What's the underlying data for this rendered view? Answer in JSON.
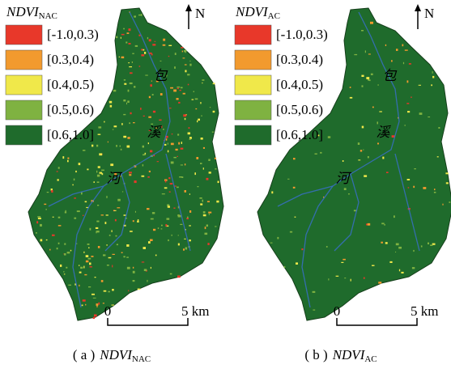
{
  "panels": [
    {
      "title": {
        "main": "NDVI",
        "sub": "NAC"
      },
      "legend": [
        {
          "label": "[-1.0,0.3)",
          "color": "#e8382a"
        },
        {
          "label": "[0.3,0.4)",
          "color": "#f29a2e"
        },
        {
          "label": "[0.4,0.5)",
          "color": "#f0e84a"
        },
        {
          "label": "[0.5,0.6)",
          "color": "#7fb241"
        },
        {
          "label": "[0.6,1.0]",
          "color": "#1f6b2c"
        }
      ],
      "north": "N",
      "scale": {
        "start": "0",
        "end": "5 km"
      },
      "river_labels": [
        "包",
        "溪",
        "河"
      ],
      "caption": {
        "prefix": "( a )",
        "main": "NDVI",
        "sub": "NAC"
      }
    },
    {
      "title": {
        "main": "NDVI",
        "sub": "AC"
      },
      "legend": [
        {
          "label": "[-1.0,0.3)",
          "color": "#e8382a"
        },
        {
          "label": "[0.3,0.4)",
          "color": "#f29a2e"
        },
        {
          "label": "[0.4,0.5)",
          "color": "#f0e84a"
        },
        {
          "label": "[0.5,0.6)",
          "color": "#7fb241"
        },
        {
          "label": "[0.6,1.0]",
          "color": "#1f6b2c"
        }
      ],
      "north": "N",
      "scale": {
        "start": "0",
        "end": "5 km"
      },
      "river_labels": [
        "包",
        "溪",
        "河"
      ],
      "caption": {
        "prefix": "( b )",
        "main": "NDVI",
        "sub": "AC"
      }
    }
  ]
}
